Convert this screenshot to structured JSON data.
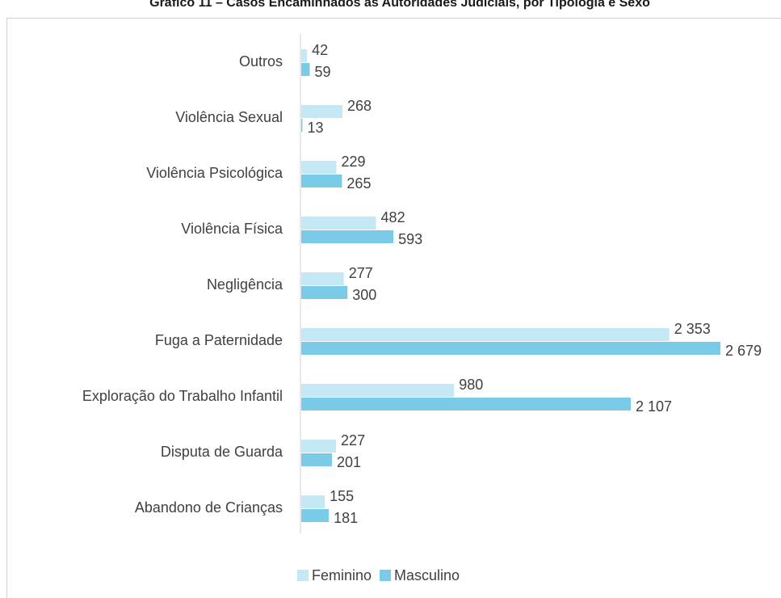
{
  "chart_data": {
    "type": "bar",
    "orientation": "horizontal",
    "title": "Gráfico 11 – Casos Encaminhados às Autoridades Judiciais, por Tipologia e Sexo",
    "categories": [
      "Outros",
      "Violência Sexual",
      "Violência Psicológica",
      "Violência Física",
      "Negligência",
      "Fuga a Paternidade",
      "Exploração do Trabalho Infantil",
      "Disputa de Guarda",
      "Abandono de Crianças"
    ],
    "series": [
      {
        "name": "Feminino",
        "color": "#c5e8f7",
        "values": [
          42,
          268,
          229,
          482,
          277,
          2353,
          980,
          227,
          155
        ],
        "value_labels": [
          "42",
          "268",
          "229",
          "482",
          "277",
          "2 353",
          "980",
          "227",
          "155"
        ]
      },
      {
        "name": "Masculino",
        "color": "#7acbe8",
        "values": [
          59,
          13,
          265,
          593,
          300,
          2679,
          2107,
          201,
          181
        ],
        "value_labels": [
          "59",
          "13",
          "265",
          "593",
          "300",
          "2 679",
          "2 107",
          "201",
          "181"
        ]
      }
    ],
    "legend": "bottom"
  }
}
